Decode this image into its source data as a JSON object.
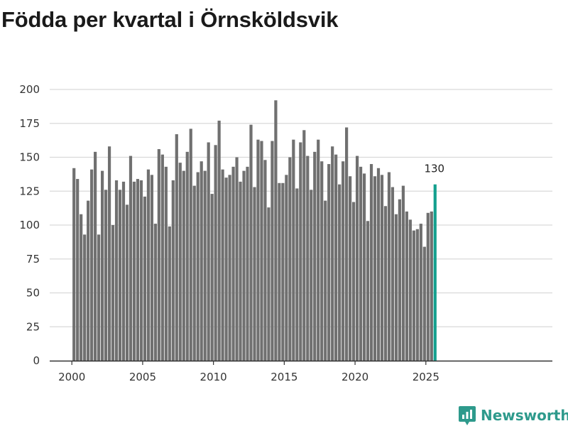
{
  "title": "Födda per kvartal i Örnsköldsvik",
  "brand": {
    "name": "Newsworthy",
    "icon": "newsworthy-logo-icon"
  },
  "colors": {
    "bar": "#707070",
    "highlight": "#14a08e",
    "grid": "#d9d9d9",
    "axis": "#333333",
    "brand": "#2e9a8c"
  },
  "chart_data": {
    "type": "bar",
    "title": "Födda per kvartal i Örnsköldsvik",
    "xlabel": "",
    "ylabel": "",
    "ylim": [
      0,
      200
    ],
    "yticks": [
      0,
      25,
      50,
      75,
      100,
      125,
      150,
      175,
      200
    ],
    "xticks": [
      "2000",
      "2005",
      "2010",
      "2015",
      "2020",
      "2025"
    ],
    "grid": true,
    "start": {
      "year": 2000,
      "quarter": 1
    },
    "categories": [
      "2000 K1",
      "2000 K2",
      "2000 K3",
      "2000 K4",
      "2001 K1",
      "2001 K2",
      "2001 K3",
      "2001 K4",
      "2002 K1",
      "2002 K2",
      "2002 K3",
      "2002 K4",
      "2003 K1",
      "2003 K2",
      "2003 K3",
      "2003 K4",
      "2004 K1",
      "2004 K2",
      "2004 K3",
      "2004 K4",
      "2005 K1",
      "2005 K2",
      "2005 K3",
      "2005 K4",
      "2006 K1",
      "2006 K2",
      "2006 K3",
      "2006 K4",
      "2007 K1",
      "2007 K2",
      "2007 K3",
      "2007 K4",
      "2008 K1",
      "2008 K2",
      "2008 K3",
      "2008 K4",
      "2009 K1",
      "2009 K2",
      "2009 K3",
      "2009 K4",
      "2010 K1",
      "2010 K2",
      "2010 K3",
      "2010 K4",
      "2011 K1",
      "2011 K2",
      "2011 K3",
      "2011 K4",
      "2012 K1",
      "2012 K2",
      "2012 K3",
      "2012 K4",
      "2013 K1",
      "2013 K2",
      "2013 K3",
      "2013 K4",
      "2014 K1",
      "2014 K2",
      "2014 K3",
      "2014 K4",
      "2015 K1",
      "2015 K2",
      "2015 K3",
      "2015 K4",
      "2016 K1",
      "2016 K2",
      "2016 K3",
      "2016 K4",
      "2017 K1",
      "2017 K2",
      "2017 K3",
      "2017 K4",
      "2018 K1",
      "2018 K2",
      "2018 K3",
      "2018 K4",
      "2019 K1",
      "2019 K2",
      "2019 K3",
      "2019 K4",
      "2020 K1",
      "2020 K2",
      "2020 K3",
      "2020 K4",
      "2021 K1",
      "2021 K2",
      "2021 K3",
      "2021 K4",
      "2022 K1",
      "2022 K2",
      "2022 K3",
      "2022 K4",
      "2023 K1",
      "2023 K2",
      "2023 K3",
      "2023 K4",
      "2024 K1",
      "2024 K2",
      "2024 K3",
      "2024 K4",
      "2025 K1",
      "2025 K2",
      "2025 K3"
    ],
    "values": [
      142,
      134,
      108,
      93,
      118,
      141,
      154,
      93,
      140,
      126,
      158,
      100,
      133,
      126,
      132,
      115,
      151,
      132,
      134,
      133,
      121,
      141,
      137,
      101,
      156,
      152,
      143,
      99,
      133,
      167,
      146,
      140,
      154,
      171,
      129,
      139,
      147,
      140,
      161,
      123,
      159,
      177,
      141,
      135,
      137,
      143,
      150,
      132,
      140,
      143,
      174,
      128,
      163,
      162,
      148,
      113,
      162,
      192,
      131,
      131,
      137,
      150,
      163,
      127,
      161,
      170,
      151,
      126,
      154,
      163,
      147,
      118,
      145,
      158,
      152,
      130,
      147,
      172,
      136,
      117,
      151,
      143,
      138,
      103,
      145,
      136,
      142,
      137,
      114,
      139,
      128,
      108,
      119,
      129,
      110,
      104,
      96,
      97,
      101,
      84,
      109,
      110,
      130
    ],
    "highlight_index": 102,
    "annotation": {
      "label": "130",
      "category": "2025 K3"
    }
  }
}
